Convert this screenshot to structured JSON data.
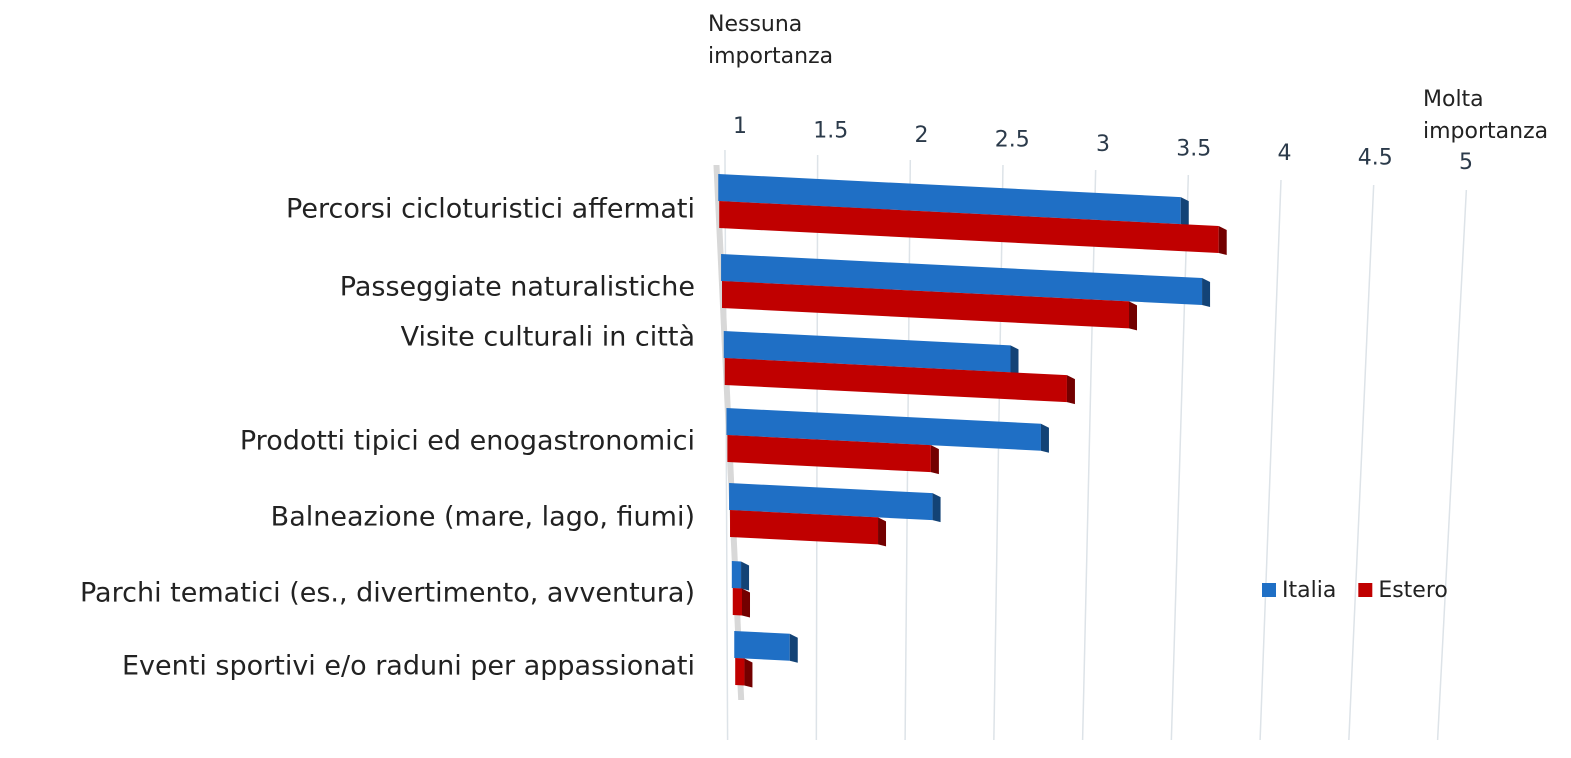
{
  "chart_data": {
    "type": "bar",
    "orientation": "horizontal",
    "annotations": [
      "Nessuna importanza",
      "Molta importanza"
    ],
    "categories": [
      "Percorsi cicloturistici affermati",
      "Passeggiate naturalistiche",
      "Visite culturali in città",
      "Prodotti tipici ed enogastronomici",
      "Balneazione (mare, lago, fiumi)",
      "Parchi tematici (es., divertimento, avventura)",
      "Eventi sportivi e/o raduni per appassionati"
    ],
    "series": [
      {
        "name": "Italia",
        "color": "#1f6fc5",
        "values": [
          3.5,
          3.6,
          2.55,
          2.7,
          2.1,
          1.05,
          1.3
        ]
      },
      {
        "name": "Estero",
        "color": "#c00000",
        "values": [
          3.7,
          3.2,
          2.85,
          2.1,
          1.8,
          1.05,
          1.05
        ]
      }
    ],
    "xlim": [
      1,
      5
    ],
    "xticks": [
      1,
      1.5,
      2,
      2.5,
      3,
      3.5,
      4,
      4.5,
      5
    ],
    "grid": true,
    "legend": "right"
  }
}
